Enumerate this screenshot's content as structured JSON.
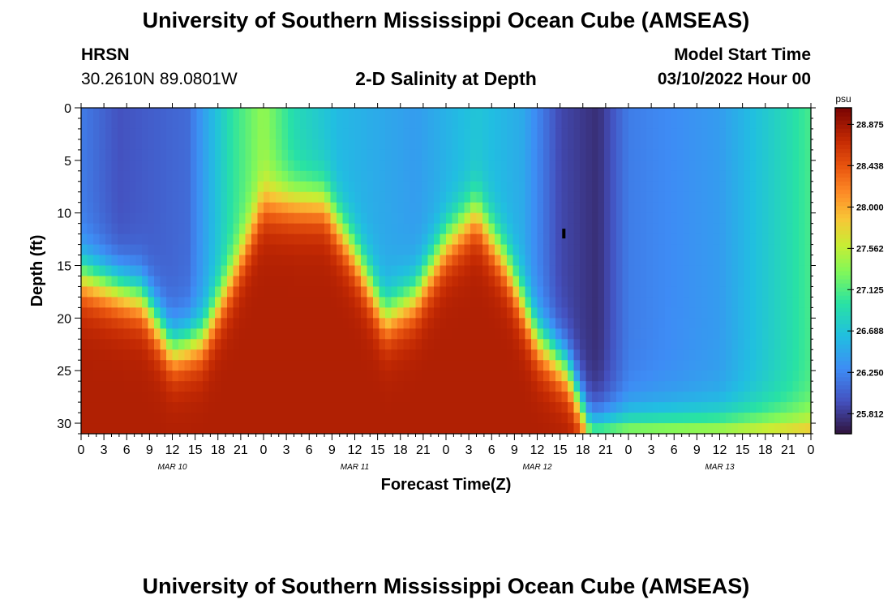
{
  "header": {
    "title_top": "University of Southern Mississippi Ocean Cube (AMSEAS)",
    "station": "HRSN",
    "coords": "30.2610N  89.0801W",
    "plot_title": "2-D Salinity at Depth",
    "model_start_label": "Model Start Time",
    "model_start_value": "03/10/2022 Hour 00",
    "title_bottom": "University of Southern Mississippi Ocean Cube (AMSEAS)"
  },
  "chart_data": {
    "type": "heatmap",
    "title": "2-D Salinity at Depth",
    "xlabel": "Forecast Time(Z)",
    "ylabel": "Depth (ft)",
    "xlim_hours": [
      0,
      96
    ],
    "ylim": [
      0,
      31
    ],
    "y_ticks": [
      0,
      5,
      10,
      15,
      20,
      25,
      30
    ],
    "x_tick_labels": [
      "0",
      "3",
      "6",
      "9",
      "12",
      "15",
      "18",
      "21",
      "0",
      "3",
      "6",
      "9",
      "12",
      "15",
      "18",
      "21",
      "0",
      "3",
      "6",
      "9",
      "12",
      "15",
      "18",
      "21",
      "0",
      "3",
      "6",
      "9",
      "12",
      "15",
      "18",
      "21",
      "0"
    ],
    "day_labels": [
      {
        "label": "MAR 10",
        "hour": 12
      },
      {
        "label": "MAR 11",
        "hour": 36
      },
      {
        "label": "MAR 12",
        "hour": 60
      },
      {
        "label": "MAR 13",
        "hour": 84
      }
    ],
    "colorbar": {
      "unit": "psu",
      "min": 25.6,
      "max": 29.05,
      "tick_values": [
        28.875,
        28.438,
        28.0,
        27.562,
        27.125,
        26.688,
        26.25,
        25.812
      ],
      "tick_labels": [
        "28.875",
        "28.438",
        "28.000",
        "27.562",
        "27.125",
        "26.688",
        "26.250",
        "25.812"
      ]
    },
    "field_description": {
      "surface_salinity_psu": [
        {
          "hour": 0,
          "value": 26.2
        },
        {
          "hour": 5,
          "value": 25.95
        },
        {
          "hour": 14,
          "value": 26.1
        },
        {
          "hour": 20,
          "value": 27.0
        },
        {
          "hour": 24,
          "value": 27.4
        },
        {
          "hour": 28,
          "value": 26.9
        },
        {
          "hour": 34,
          "value": 26.6
        },
        {
          "hour": 44,
          "value": 26.4
        },
        {
          "hour": 52,
          "value": 26.7
        },
        {
          "hour": 58,
          "value": 26.5
        },
        {
          "hour": 63,
          "value": 25.9
        },
        {
          "hour": 68,
          "value": 25.75
        },
        {
          "hour": 72,
          "value": 26.2
        },
        {
          "hour": 84,
          "value": 26.4
        },
        {
          "hour": 93,
          "value": 26.9
        },
        {
          "hour": 96,
          "value": 27.1
        }
      ],
      "bottom_salinity_psu": 28.8,
      "halocline_depth_ft": [
        {
          "hour": 0,
          "value": 16
        },
        {
          "hour": 8,
          "value": 18
        },
        {
          "hour": 12,
          "value": 23
        },
        {
          "hour": 16,
          "value": 22
        },
        {
          "hour": 20,
          "value": 16
        },
        {
          "hour": 24,
          "value": 9
        },
        {
          "hour": 32,
          "value": 9
        },
        {
          "hour": 36,
          "value": 14
        },
        {
          "hour": 40,
          "value": 20
        },
        {
          "hour": 44,
          "value": 18
        },
        {
          "hour": 48,
          "value": 13
        },
        {
          "hour": 52,
          "value": 10
        },
        {
          "hour": 56,
          "value": 15
        },
        {
          "hour": 60,
          "value": 22
        },
        {
          "hour": 64,
          "value": 25
        },
        {
          "hour": 67,
          "value": 31
        },
        {
          "hour": 96,
          "value": 31
        }
      ]
    }
  }
}
